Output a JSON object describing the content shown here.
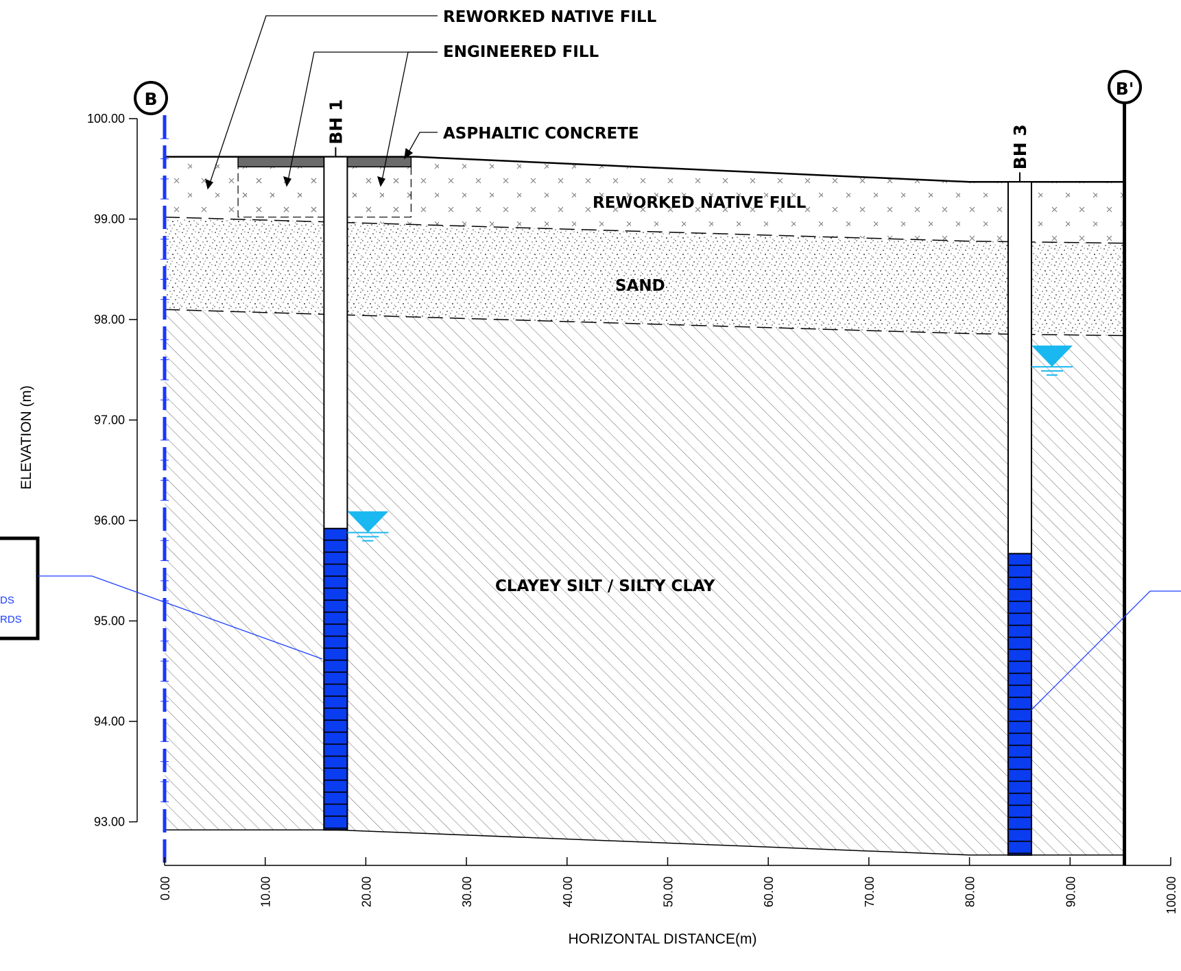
{
  "section": {
    "start_marker": "B",
    "end_marker": "B'",
    "x_axis": {
      "title": "HORIZONTAL DISTANCE(m)",
      "min": 0,
      "max": 100,
      "ticks": [
        "0.00",
        "10.00",
        "20.00",
        "30.00",
        "40.00",
        "50.00",
        "60.00",
        "70.00",
        "80.00",
        "90.00",
        "100.00"
      ]
    },
    "y_axis": {
      "title": "ELEVATION (m)",
      "min": 93,
      "max": 100,
      "ticks": [
        "100.00",
        "99.00",
        "98.00",
        "97.00",
        "96.00",
        "95.00",
        "94.00",
        "93.00"
      ]
    },
    "labels": {
      "reworked_native_fill_top": "REWORKED NATIVE FILL",
      "engineered_fill": "ENGINEERED FILL",
      "asphaltic_concrete": "ASPHALTIC CONCRETE",
      "reworked_native_fill_layer": "REWORKED NATIVE FILL",
      "sand": "SAND",
      "clayey_silt": "CLAYEY SILT / SILTY CLAY"
    },
    "left_callout_fragments": [
      "DS",
      "RDS"
    ],
    "boreholes": [
      {
        "name": "BH 1",
        "x": 17,
        "ground": 99.62,
        "bottom": 92.92,
        "screen_top": 95.92,
        "water_level": 95.9
      },
      {
        "name": "BH 3",
        "x": 85,
        "ground": 99.37,
        "bottom": 92.67,
        "screen_top": 95.67,
        "water_level": 97.55
      }
    ],
    "layers": {
      "ground_surface": [
        [
          0,
          99.62
        ],
        [
          25,
          99.62
        ],
        [
          80,
          99.37
        ],
        [
          95.4,
          99.37
        ]
      ],
      "fill_sand_boundary": [
        [
          0,
          99.02
        ],
        [
          80,
          98.78
        ],
        [
          95.4,
          98.76
        ]
      ],
      "sand_clay_boundary": [
        [
          0,
          98.1
        ],
        [
          80,
          97.86
        ],
        [
          95.4,
          97.84
        ]
      ],
      "base": [
        [
          0,
          92.92
        ],
        [
          17,
          92.92
        ],
        [
          80,
          92.67
        ],
        [
          95.4,
          92.67
        ]
      ],
      "asphalt_extent": [
        7.3,
        24.5
      ],
      "asphalt_bottom": 99.52,
      "engineered_fill_bottom": 99.02
    },
    "colors": {
      "borehole_screen": "#0a3cf0",
      "water_symbol": "#1ab8f0",
      "asphalt": "#6b6b6b",
      "section_line_b": "#1a35ff",
      "callout_line": "#1a3cff"
    }
  }
}
